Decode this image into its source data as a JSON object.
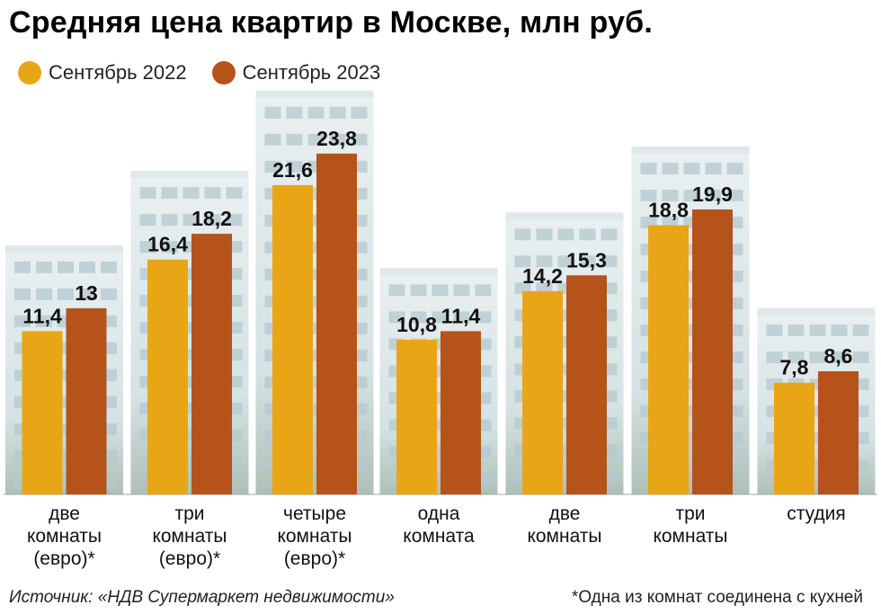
{
  "title": "Средняя цена квартир в Москве, млн руб.",
  "legend": [
    {
      "label": "Сентябрь 2022",
      "color": "#e8a617"
    },
    {
      "label": "Сентябрь 2023",
      "color": "#b5531b"
    }
  ],
  "chart_data": {
    "type": "bar",
    "title": "Средняя цена квартир в Москве, млн руб.",
    "categories": [
      [
        "две",
        "комнаты",
        "(евро)*"
      ],
      [
        "три",
        "комнаты",
        "(евро)*"
      ],
      [
        "четыре",
        "комнаты",
        "(евро)*"
      ],
      [
        "одна",
        "комната"
      ],
      [
        "две",
        "комнаты"
      ],
      [
        "три",
        "комнаты"
      ],
      [
        "студия"
      ]
    ],
    "series": [
      {
        "name": "Сентябрь 2022",
        "color": "#e8a617",
        "values": [
          11.4,
          16.4,
          21.6,
          10.8,
          14.2,
          18.8,
          7.8
        ],
        "labels": [
          "11,4",
          "16,4",
          "21,6",
          "10,8",
          "14,2",
          "18,8",
          "7,8"
        ]
      },
      {
        "name": "Сентябрь 2023",
        "color": "#b5531b",
        "values": [
          13,
          18.2,
          23.8,
          11.4,
          15.3,
          19.9,
          8.6
        ],
        "labels": [
          "13",
          "18,2",
          "23,8",
          "11,4",
          "15,3",
          "19,9",
          "8,6"
        ]
      }
    ],
    "legend_position": "top-left",
    "grid": false
  },
  "footer": {
    "source": "Источник: «НДВ Супермаркет недвижимости»",
    "note": "*Одна из комнат соединена с кухней"
  }
}
